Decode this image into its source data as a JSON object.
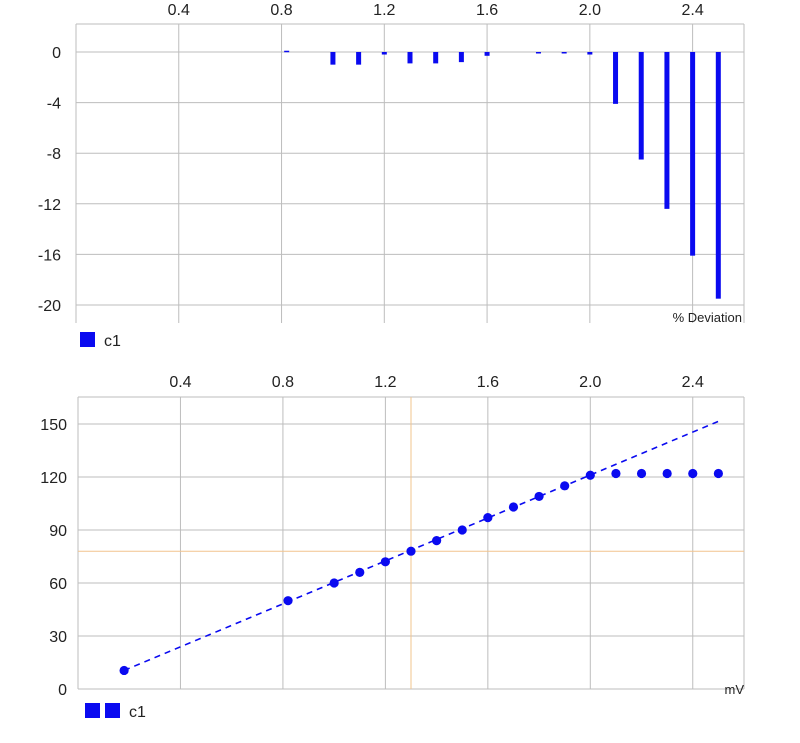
{
  "colors": {
    "series": "#0a0af0",
    "grid": "#bdbdbd",
    "crosshair": "#f2c48d",
    "text": "#222222"
  },
  "chart_data": [
    {
      "type": "bar",
      "x_axis_position": "top",
      "xlim": [
        0.0,
        2.6
      ],
      "ylim": [
        -21,
        2
      ],
      "x_ticks": [
        "0.4",
        "0.8",
        "1.2",
        "1.6",
        "2.0",
        "2.4"
      ],
      "y_ticks": [
        "0",
        "-4",
        "-8",
        "-12",
        "-16",
        "-20"
      ],
      "ylabel": "% Deviation",
      "grid": true,
      "legend": "bottom-left",
      "series": [
        {
          "name": "c1",
          "x": [
            0.82,
            1.0,
            1.1,
            1.2,
            1.3,
            1.4,
            1.5,
            1.6,
            1.8,
            1.9,
            2.0,
            2.1,
            2.2,
            2.3,
            2.4,
            2.5
          ],
          "values": [
            0.1,
            -1.0,
            -1.0,
            -0.2,
            -0.9,
            -0.9,
            -0.8,
            -0.3,
            -0.05,
            -0.1,
            -0.2,
            -4.1,
            -8.5,
            -12.4,
            -16.1,
            -19.5
          ]
        }
      ]
    },
    {
      "type": "scatter",
      "x_axis_position": "top",
      "xlim": [
        0.0,
        2.6
      ],
      "ylim": [
        0,
        165
      ],
      "x_ticks": [
        "0.4",
        "0.8",
        "1.2",
        "1.6",
        "2.0",
        "2.4"
      ],
      "y_ticks": [
        "0",
        "30",
        "60",
        "90",
        "120",
        "150"
      ],
      "xlabel": "mV",
      "grid": true,
      "legend": "bottom-left",
      "crosshair": {
        "x": 1.3,
        "y": 78
      },
      "series": [
        {
          "name": "c1",
          "x": [
            0.18,
            0.82,
            1.0,
            1.1,
            1.2,
            1.3,
            1.4,
            1.5,
            1.6,
            1.7,
            1.8,
            1.9,
            2.0,
            2.1,
            2.2,
            2.3,
            2.4,
            2.5
          ],
          "y": [
            10.5,
            50,
            60,
            66,
            72,
            78,
            84,
            90,
            97,
            103,
            109,
            115,
            121,
            122,
            122,
            122,
            122,
            122
          ]
        }
      ],
      "fit_line": {
        "x": [
          0.18,
          2.5
        ],
        "y": [
          10.5,
          151.5
        ],
        "style": "dashed"
      }
    }
  ]
}
